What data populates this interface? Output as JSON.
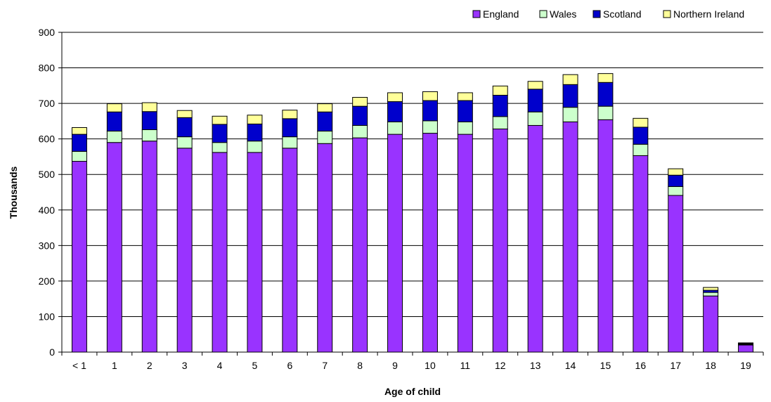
{
  "chart_data": {
    "type": "bar",
    "stacked": true,
    "title": "",
    "xlabel": "Age of child",
    "ylabel": "Thousands",
    "ylim": [
      0,
      900
    ],
    "yticks": [
      0,
      100,
      200,
      300,
      400,
      500,
      600,
      700,
      800,
      900
    ],
    "grid": true,
    "legend_position": "top-right",
    "categories": [
      "< 1",
      "1",
      "2",
      "3",
      "4",
      "5",
      "6",
      "7",
      "8",
      "9",
      "10",
      "11",
      "12",
      "13",
      "14",
      "15",
      "16",
      "17",
      "18",
      "19"
    ],
    "series": [
      {
        "name": "England",
        "color": "#9933FF",
        "values": [
          537,
          590,
          594,
          574,
          562,
          562,
          574,
          587,
          603,
          613,
          616,
          613,
          628,
          638,
          648,
          654,
          553,
          441,
          158,
          20
        ]
      },
      {
        "name": "Wales",
        "color": "#CCFFCC",
        "values": [
          28,
          32,
          32,
          32,
          28,
          32,
          32,
          35,
          35,
          35,
          35,
          35,
          35,
          38,
          41,
          38,
          32,
          25,
          10,
          2
        ]
      },
      {
        "name": "Scotland",
        "color": "#0000CC",
        "values": [
          48,
          54,
          51,
          54,
          51,
          48,
          51,
          54,
          54,
          57,
          57,
          60,
          60,
          64,
          64,
          67,
          48,
          32,
          6,
          2
        ]
      },
      {
        "name": "Northern Ireland",
        "color": "#FFFF99",
        "values": [
          19,
          23,
          25,
          20,
          23,
          25,
          24,
          23,
          25,
          25,
          25,
          22,
          26,
          22,
          28,
          25,
          25,
          18,
          8,
          2
        ]
      }
    ]
  }
}
